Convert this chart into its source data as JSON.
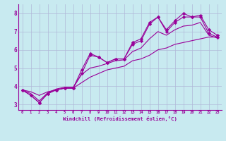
{
  "xlabel": "Windchill (Refroidissement éolien,°C)",
  "bg_color": "#c8eaf0",
  "line_color": "#990099",
  "grid_color": "#b0b8d8",
  "xlim": [
    -0.5,
    23.5
  ],
  "ylim": [
    2.7,
    8.5
  ],
  "xticks": [
    0,
    1,
    2,
    3,
    4,
    5,
    6,
    7,
    8,
    9,
    10,
    11,
    12,
    13,
    14,
    15,
    16,
    17,
    18,
    19,
    20,
    21,
    22,
    23
  ],
  "yticks": [
    3,
    4,
    5,
    6,
    7,
    8
  ],
  "series_with_markers": [
    [
      3.8,
      3.5,
      3.1,
      3.6,
      3.8,
      3.9,
      3.9,
      4.7,
      5.7,
      5.6,
      5.3,
      5.5,
      5.5,
      6.3,
      6.5,
      7.4,
      7.8,
      7.0,
      7.5,
      7.8,
      7.8,
      7.8,
      6.9,
      6.7
    ],
    [
      3.8,
      3.5,
      3.1,
      3.6,
      3.8,
      3.9,
      3.9,
      4.9,
      5.8,
      5.6,
      5.3,
      5.5,
      5.5,
      6.4,
      6.6,
      7.5,
      7.8,
      7.1,
      7.6,
      8.0,
      7.8,
      7.9,
      7.1,
      6.8
    ]
  ],
  "series_smooth": [
    [
      3.8,
      3.6,
      3.2,
      3.65,
      3.85,
      3.95,
      3.95,
      4.65,
      5.0,
      5.1,
      5.25,
      5.4,
      5.45,
      5.9,
      6.1,
      6.6,
      7.0,
      6.8,
      7.1,
      7.3,
      7.35,
      7.5,
      6.8,
      6.65
    ],
    [
      3.8,
      3.7,
      3.5,
      3.7,
      3.8,
      3.9,
      3.9,
      4.2,
      4.5,
      4.7,
      4.9,
      5.0,
      5.1,
      5.4,
      5.5,
      5.7,
      6.0,
      6.1,
      6.3,
      6.4,
      6.5,
      6.6,
      6.7,
      6.7
    ]
  ]
}
